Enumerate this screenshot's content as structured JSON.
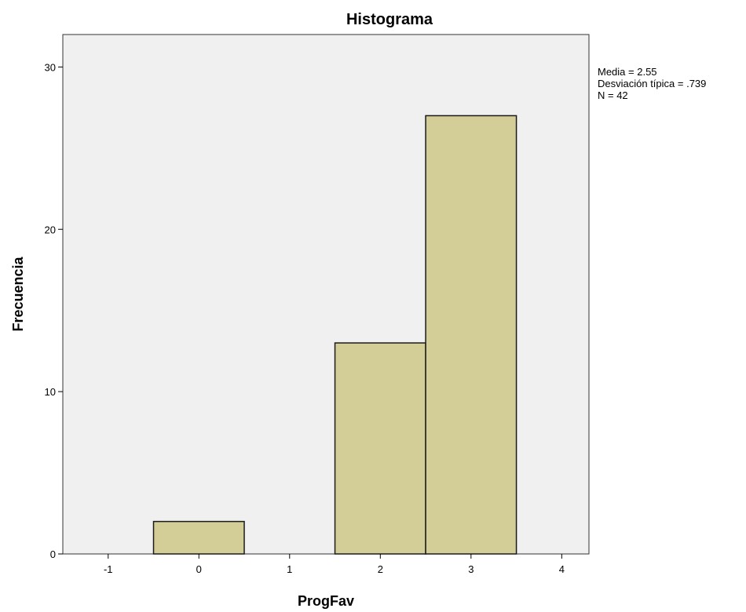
{
  "chart_data": {
    "type": "bar",
    "title": "Histograma",
    "xlabel": "ProgFav",
    "ylabel": "Frecuencia",
    "bins": [
      {
        "center": 0,
        "count": 2
      },
      {
        "center": 2,
        "count": 13
      },
      {
        "center": 3,
        "count": 27
      }
    ],
    "bin_width": 1,
    "xlim": [
      -1.5,
      4.3
    ],
    "ylim": [
      0,
      32
    ],
    "xticks": [
      -1,
      0,
      1,
      2,
      3,
      4
    ],
    "xtick_labels": [
      "-1",
      "0",
      "1",
      "2",
      "3",
      "4"
    ],
    "yticks": [
      0,
      10,
      20,
      30
    ],
    "ytick_labels": [
      "0",
      "10",
      "20",
      "30"
    ],
    "grid": false,
    "stats": [
      "Media = 2.55",
      "Desviación típica = .739",
      "N = 42"
    ],
    "colors": {
      "bar_fill": "#d3ce97",
      "bar_stroke": "#1a1a1a",
      "plot_background": "#f0f0f0"
    }
  }
}
